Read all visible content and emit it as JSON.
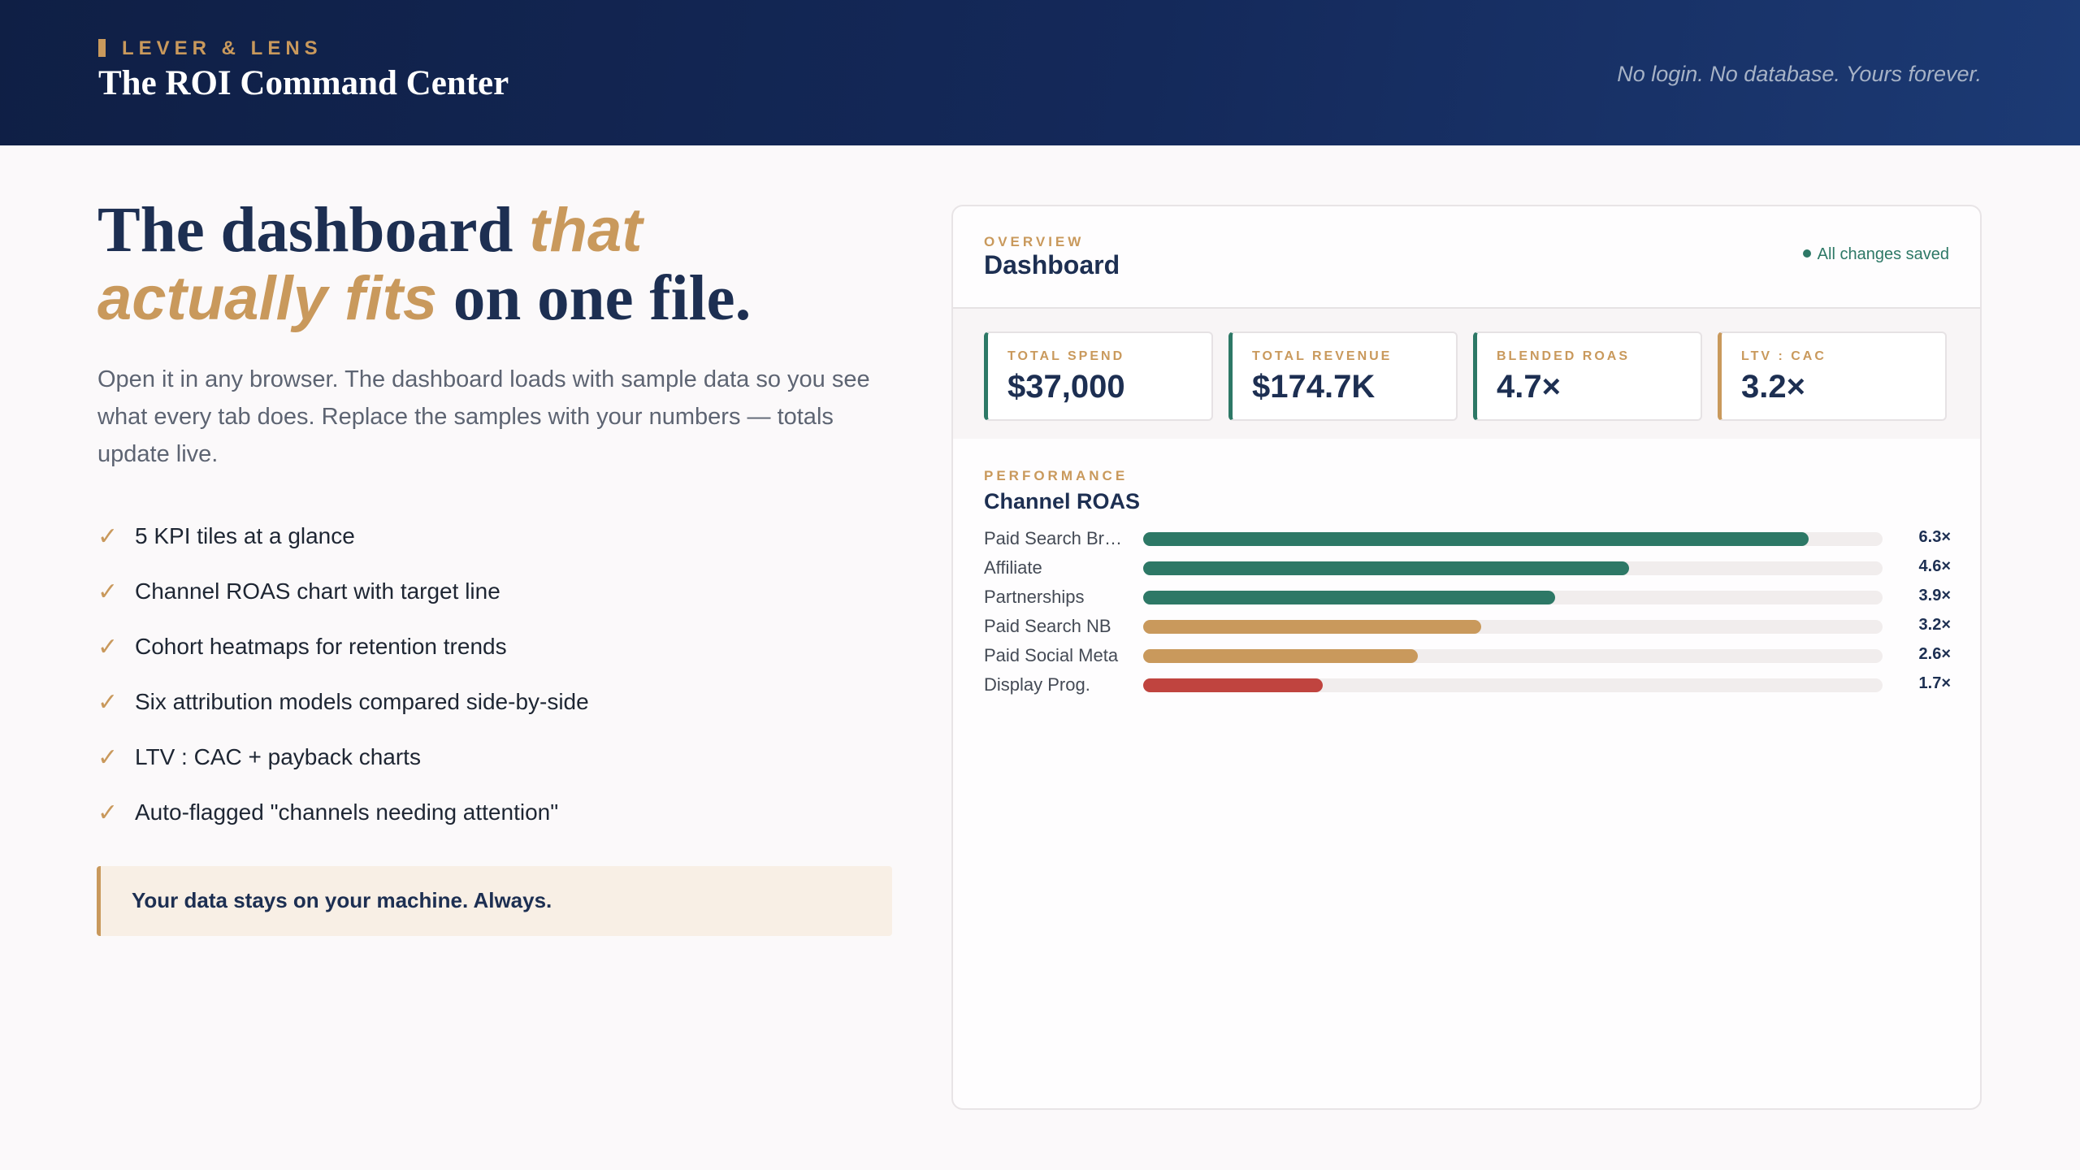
{
  "header": {
    "brand": "LEVER & LENS",
    "title": "The ROI Command Center",
    "tagline": "No login. No database. Yours forever."
  },
  "hero": {
    "headline_part1": "The dashboard ",
    "headline_accent": "that actually fits",
    "headline_part2": " on one file.",
    "lead": "Open it in any browser. The dashboard loads with sample data so you see what every tab does. Replace the samples with your numbers — totals update live."
  },
  "features": [
    "5 KPI tiles at a glance",
    "Channel ROAS chart with target line",
    "Cohort heatmaps for retention trends",
    "Six attribution models compared side-by-side",
    "LTV : CAC + payback charts",
    "Auto-flagged \"channels needing attention\""
  ],
  "check_glyph": "✓",
  "callout": "Your data stays on your machine. Always.",
  "dashboard": {
    "eyebrow": "OVERVIEW",
    "title": "Dashboard",
    "status": "All changes saved",
    "kpis": [
      {
        "label": "TOTAL SPEND",
        "value": "$37,000",
        "accent": "#2d7866"
      },
      {
        "label": "TOTAL REVENUE",
        "value": "$174.7K",
        "accent": "#2d7866"
      },
      {
        "label": "BLENDED ROAS",
        "value": "4.7×",
        "accent": "#2d7866"
      },
      {
        "label": "LTV : CAC",
        "value": "3.2×",
        "accent": "#c9995c"
      }
    ],
    "performance": {
      "eyebrow": "PERFORMANCE",
      "title": "Channel ROAS",
      "channels": [
        {
          "name": "Paid Search Br…",
          "roas": 6.3,
          "display": "6.3×",
          "color": "#2d7866"
        },
        {
          "name": "Affiliate",
          "roas": 4.6,
          "display": "4.6×",
          "color": "#2d7866"
        },
        {
          "name": "Partnerships",
          "roas": 3.9,
          "display": "3.9×",
          "color": "#2d7866"
        },
        {
          "name": "Paid Search NB",
          "roas": 3.2,
          "display": "3.2×",
          "color": "#c9995c"
        },
        {
          "name": "Paid Social Meta",
          "roas": 2.6,
          "display": "2.6×",
          "color": "#c9995c"
        },
        {
          "name": "Display Prog.",
          "roas": 1.7,
          "display": "1.7×",
          "color": "#c0443f"
        }
      ]
    }
  },
  "colors": {
    "navy": "#1d2f52",
    "gold": "#c9995c",
    "teal": "#2d7866",
    "red": "#c0443f"
  }
}
